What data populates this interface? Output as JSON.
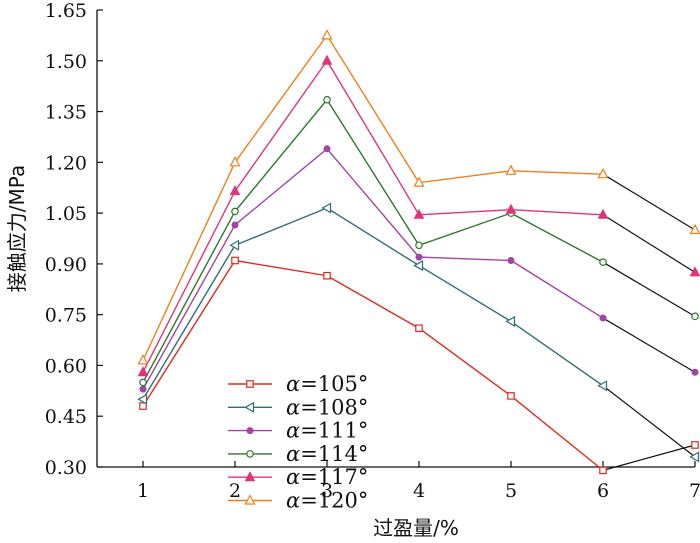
{
  "chart_data": {
    "type": "line",
    "title": "",
    "xlabel": "过盈量/%",
    "ylabel": "接触应力/MPa",
    "x": [
      1,
      2,
      3,
      4,
      5,
      6,
      7
    ],
    "x_tick_labels": [
      "1",
      "2",
      "3",
      "4",
      "5",
      "6",
      "7"
    ],
    "y_ticks": [
      0.3,
      0.45,
      0.6,
      0.75,
      0.9,
      1.05,
      1.2,
      1.35,
      1.5,
      1.65
    ],
    "y_tick_labels": [
      "0.30",
      "0.45",
      "0.60",
      "0.75",
      "0.90",
      "1.05",
      "1.20",
      "1.35",
      "1.50",
      "1.65"
    ],
    "xlim": [
      0.5,
      7
    ],
    "ylim": [
      0.3,
      1.65
    ],
    "grid": false,
    "legend_position": "bottom-left",
    "series": [
      {
        "name": "α=105°",
        "alpha_symbol": "α",
        "alpha_value": "=105°",
        "color": "#e0281e",
        "marker": "square",
        "values": [
          0.48,
          0.91,
          0.865,
          0.71,
          0.51,
          0.29,
          0.365
        ]
      },
      {
        "name": "α=108°",
        "alpha_symbol": "α",
        "alpha_value": "=108°",
        "color": "#2e6e74",
        "marker": "triangle-left",
        "values": [
          0.5,
          0.955,
          1.065,
          0.895,
          0.73,
          0.54,
          0.33
        ]
      },
      {
        "name": "α=111°",
        "alpha_symbol": "α",
        "alpha_value": "=111°",
        "color": "#a244a6",
        "marker": "dot",
        "values": [
          0.53,
          1.015,
          1.24,
          0.92,
          0.91,
          0.74,
          0.58
        ]
      },
      {
        "name": "α=114°",
        "alpha_symbol": "α",
        "alpha_value": "=114°",
        "color": "#2a7a2a",
        "marker": "circle",
        "values": [
          0.55,
          1.055,
          1.385,
          0.955,
          1.05,
          0.905,
          0.745
        ]
      },
      {
        "name": "α=117°",
        "alpha_symbol": "α",
        "alpha_value": "=117°",
        "color": "#e0347a",
        "marker": "triangle-filled",
        "values": [
          0.58,
          1.115,
          1.5,
          1.045,
          1.06,
          1.045,
          0.875
        ]
      },
      {
        "name": "α=120°",
        "alpha_symbol": "α",
        "alpha_value": "=120°",
        "color": "#ef7f1a",
        "marker": "triangle-open",
        "values": [
          0.615,
          1.2,
          1.575,
          1.14,
          1.175,
          1.165,
          1.0
        ]
      }
    ],
    "tail_segment": {
      "from_x": 6,
      "to_x": 7,
      "color": "#111111"
    }
  }
}
